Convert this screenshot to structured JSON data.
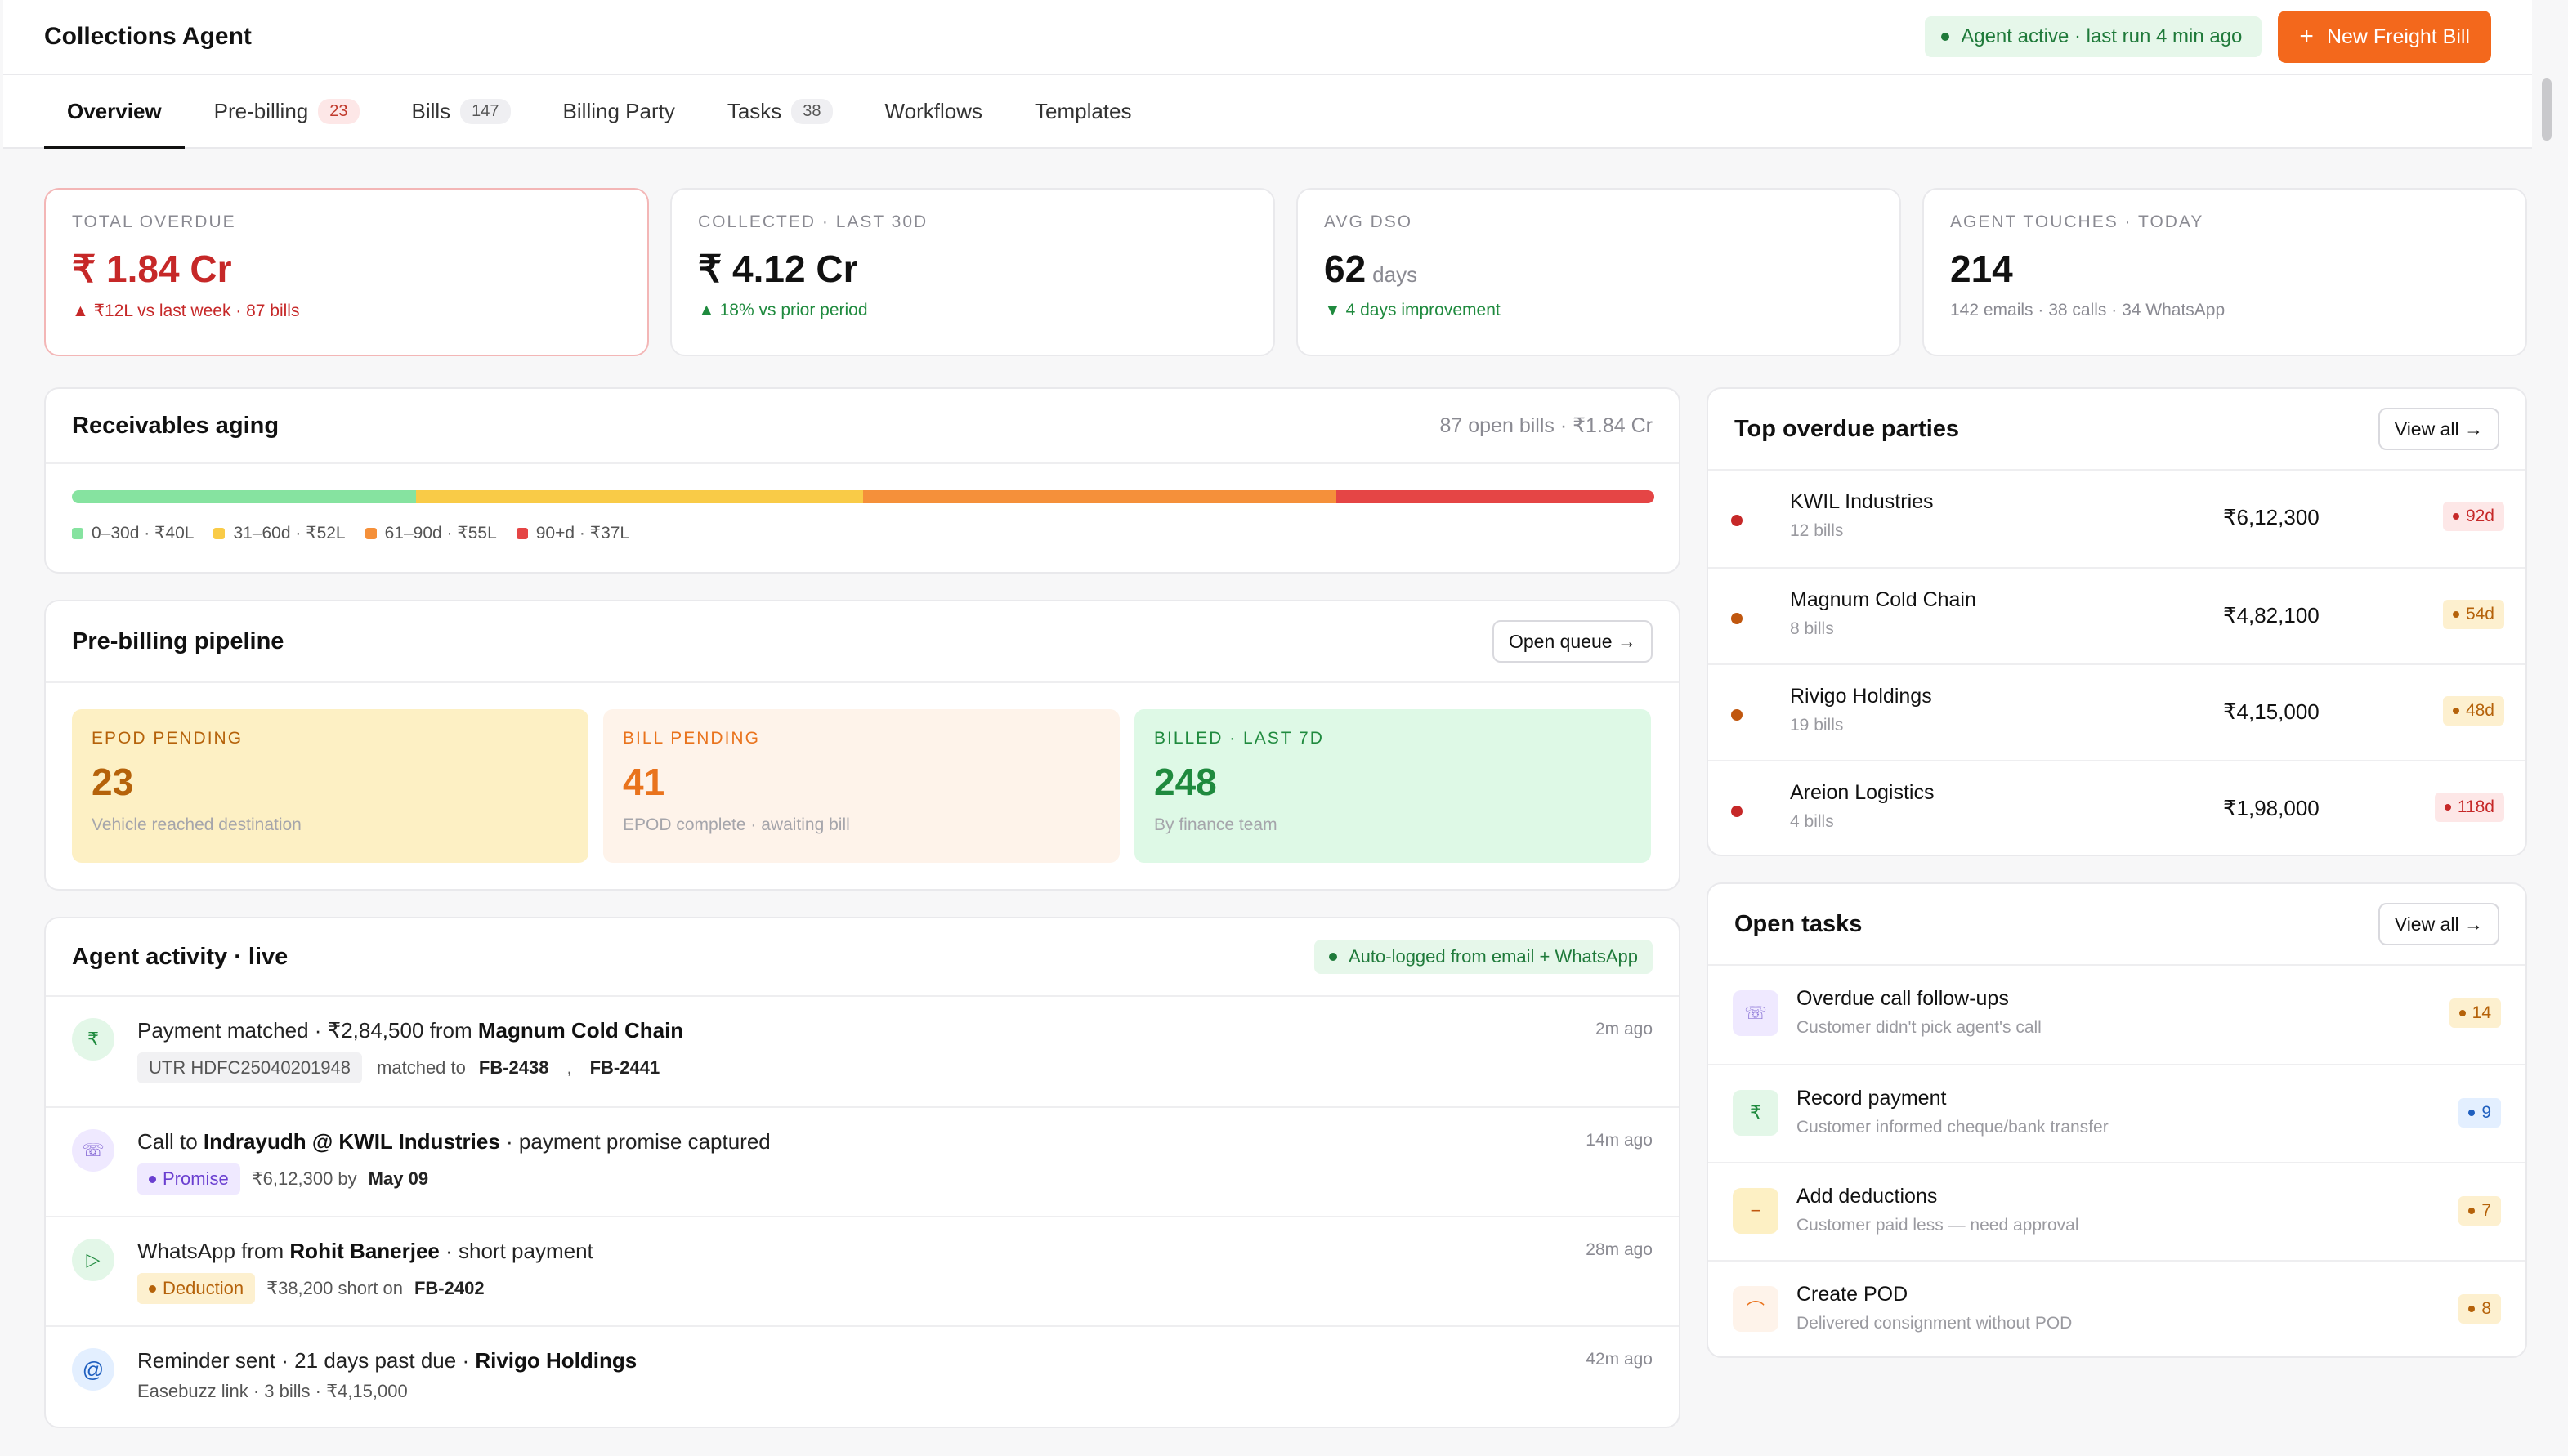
{
  "header": {
    "title": "Collections Agent",
    "status": "Agent active · last run 4 min ago",
    "new_button": "New Freight Bill",
    "new_button_icon": "plus-icon"
  },
  "tabs": [
    {
      "label": "Overview",
      "count": ""
    },
    {
      "label": "Pre-billing",
      "count": "23"
    },
    {
      "label": "Bills",
      "count": "147"
    },
    {
      "label": "Billing Party",
      "count": ""
    },
    {
      "label": "Tasks",
      "count": "38"
    },
    {
      "label": "Workflows",
      "count": ""
    },
    {
      "label": "Templates",
      "count": ""
    }
  ],
  "kpis": [
    {
      "label": "TOTAL OVERDUE",
      "value": "₹ 1.84 Cr",
      "unit": "",
      "sub": "▲ ₹12L vs last week · 87 bills"
    },
    {
      "label": "COLLECTED · LAST 30D",
      "value": "₹ 4.12 Cr",
      "unit": "",
      "sub": "▲ 18% vs prior period"
    },
    {
      "label": "AVG DSO",
      "value": "62",
      "unit": "days",
      "sub": "▼ 4 days improvement"
    },
    {
      "label": "AGENT TOUCHES · TODAY",
      "value": "214",
      "unit": "",
      "sub": "142 emails · 38 calls · 34 WhatsApp"
    }
  ],
  "aging": {
    "title": "Receivables aging",
    "meta": "87 open bills · ₹1.84 Cr",
    "segments": [
      {
        "label": "0–30d · ₹40L",
        "value": 40,
        "color": "#86e3a0"
      },
      {
        "label": "31–60d · ₹52L",
        "value": 52,
        "color": "#f9cb47"
      },
      {
        "label": "61–90d · ₹55L",
        "value": 55,
        "color": "#f5903a"
      },
      {
        "label": "90+d · ₹37L",
        "value": 37,
        "color": "#e54545"
      }
    ]
  },
  "pipeline": {
    "title": "Pre-billing pipeline",
    "button": "Open queue →",
    "stages": [
      {
        "label": "EPOD PENDING",
        "value": "23",
        "sub": "Vehicle reached destination"
      },
      {
        "label": "BILL PENDING",
        "value": "41",
        "sub": "EPOD complete · awaiting bill"
      },
      {
        "label": "BILLED · LAST 7D",
        "value": "248",
        "sub": "By finance team"
      }
    ]
  },
  "activity": {
    "title": "Agent activity · live",
    "tag": "Auto-logged from email + WhatsApp",
    "items": [
      {
        "icon": "rupee-icon",
        "glyph": "₹",
        "pre": "Payment matched · ₹2,84,500 from ",
        "bold": "Magnum Cold Chain",
        "post": "",
        "time": "2m ago",
        "chip": "UTR HDFC25040201948",
        "s1": "matched to",
        "b1": "FB-2438",
        "s2": ",",
        "b2": "FB-2441"
      },
      {
        "icon": "phone-icon",
        "glyph": "☏",
        "pre": "Call to ",
        "bold": "Indrayudh @ KWIL Industries",
        "post": " · payment promise captured",
        "time": "14m ago",
        "chip": "Promise",
        "s1": "₹6,12,300 by",
        "b1": "May 09"
      },
      {
        "icon": "whatsapp-icon",
        "glyph": "▷",
        "pre": "WhatsApp from ",
        "bold": "Rohit Banerjee",
        "post": " · short payment",
        "time": "28m ago",
        "chip": "Deduction",
        "s1": "₹38,200 short on",
        "b1": "FB-2402"
      },
      {
        "icon": "email-icon",
        "glyph": "@",
        "pre": "Reminder sent · 21 days past due · ",
        "bold": "Rivigo Holdings",
        "post": "",
        "time": "42m ago",
        "s1": "Easebuzz link · 3 bills · ₹4,15,000"
      }
    ]
  },
  "parties": {
    "title": "Top overdue parties",
    "button": "View all →",
    "items": [
      {
        "name": "KWIL Industries",
        "bills": "12 bills",
        "amount": "₹6,12,300",
        "days": "92d",
        "severity": "red"
      },
      {
        "name": "Magnum Cold Chain",
        "bills": "8 bills",
        "amount": "₹4,82,100",
        "days": "54d",
        "severity": "amber"
      },
      {
        "name": "Rivigo Holdings",
        "bills": "19 bills",
        "amount": "₹4,15,000",
        "days": "48d",
        "severity": "amber"
      },
      {
        "name": "Areion Logistics",
        "bills": "4 bills",
        "amount": "₹1,98,000",
        "days": "118d",
        "severity": "red"
      }
    ]
  },
  "tasks": {
    "title": "Open tasks",
    "button": "View all →",
    "items": [
      {
        "title": "Overdue call follow-ups",
        "sub": "Customer didn't pick agent's call",
        "count": "14",
        "icon": "phone-icon",
        "glyph": "☏"
      },
      {
        "title": "Record payment",
        "sub": "Customer informed cheque/bank transfer",
        "count": "9",
        "icon": "rupee-icon",
        "glyph": "₹"
      },
      {
        "title": "Add deductions",
        "sub": "Customer paid less — need approval",
        "count": "7",
        "icon": "minus-icon",
        "glyph": "−"
      },
      {
        "title": "Create POD",
        "sub": "Delivered consignment without POD",
        "count": "8",
        "icon": "signature-icon",
        "glyph": "⌒"
      }
    ]
  },
  "colors": {
    "accent": "#f3681c",
    "danger": "#c62828",
    "success": "#1f8a3e"
  }
}
